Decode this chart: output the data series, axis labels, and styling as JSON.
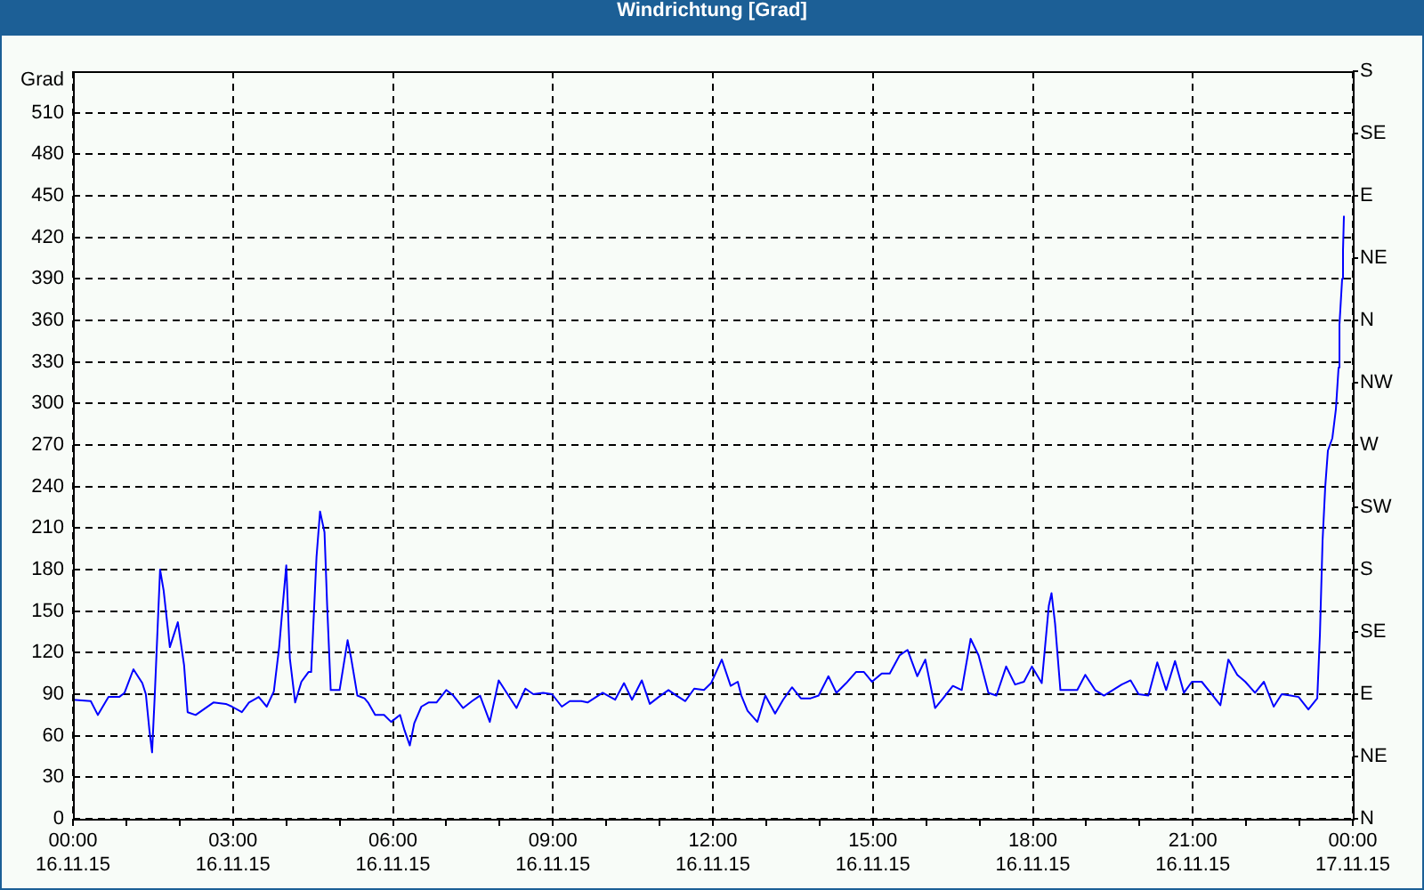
{
  "chart_data": {
    "type": "line",
    "title": "Windrichtung [Grad]",
    "ylabel": "Grad",
    "x": [
      "--11-16T00:00",
      "--11-16T00:20",
      "--11-16T00:28",
      "--11-16T00:40",
      "--11-16T00:52",
      "--11-16T00:58",
      "--11-16T01:08",
      "--11-16T01:18",
      "--11-16T01:22",
      "--11-16T01:26",
      "--11-16T01:29",
      "--11-16T01:32",
      "--11-16T01:38",
      "--11-16T01:42",
      "--11-16T01:49",
      "--11-16T01:58",
      "--11-16T02:05",
      "--11-16T02:09",
      "--11-16T02:18",
      "--11-16T02:38",
      "--11-16T02:52",
      "--11-16T02:59",
      "--11-16T03:10",
      "--11-16T03:18",
      "--11-16T03:29",
      "--11-16T03:38",
      "--11-16T03:46",
      "--11-16T03:52",
      "--11-16T03:56",
      "--11-16T04:00",
      "--11-16T04:04",
      "--11-16T04:10",
      "--11-16T04:17",
      "--11-16T04:25",
      "--11-16T04:28",
      "--11-16T04:34",
      "--11-16T04:38",
      "--11-16T04:43",
      "--11-16T04:46",
      "--11-16T04:50",
      "--11-16T05:00",
      "--11-16T05:09",
      "--11-16T05:13",
      "--11-16T05:20",
      "--11-16T05:28",
      "--11-16T05:32",
      "--11-16T05:40",
      "--11-16T05:50",
      "--11-16T05:58",
      "--11-16T06:08",
      "--11-16T06:13",
      "--11-16T06:19",
      "--11-16T06:24",
      "--11-16T06:32",
      "--11-16T06:40",
      "--11-16T06:49",
      "--11-16T07:00",
      "--11-16T07:08",
      "--11-16T07:19",
      "--11-16T07:29",
      "--11-16T07:38",
      "--11-16T07:49",
      "--11-16T07:59",
      "--11-16T08:09",
      "--11-16T08:19",
      "--11-16T08:29",
      "--11-16T08:38",
      "--11-16T08:49",
      "--11-16T08:59",
      "--11-16T09:10",
      "--11-16T09:19",
      "--11-16T09:32",
      "--11-16T09:39",
      "--11-16T09:56",
      "--11-16T10:10",
      "--11-16T10:20",
      "--11-16T10:29",
      "--11-16T10:40",
      "--11-16T10:49",
      "--11-16T10:59",
      "--11-16T11:10",
      "--11-16T11:19",
      "--11-16T11:29",
      "--11-16T11:39",
      "--11-16T11:50",
      "--11-16T11:58",
      "--11-16T12:10",
      "--11-16T12:20",
      "--11-16T12:28",
      "--11-16T12:32",
      "--11-16T12:39",
      "--11-16T12:50",
      "--11-16T12:59",
      "--11-16T13:10",
      "--11-16T13:19",
      "--11-16T13:29",
      "--11-16T13:39",
      "--11-16T13:50",
      "--11-16T13:59",
      "--11-16T14:10",
      "--11-16T14:19",
      "--11-16T14:30",
      "--11-16T14:41",
      "--11-16T14:50",
      "--11-16T14:59",
      "--11-16T15:10",
      "--11-16T15:19",
      "--11-16T15:30",
      "--11-16T15:39",
      "--11-16T15:50",
      "--11-16T15:59",
      "--11-16T16:10",
      "--11-16T16:19",
      "--11-16T16:30",
      "--11-16T16:40",
      "--11-16T16:50",
      "--11-16T16:59",
      "--11-16T17:10",
      "--11-16T17:19",
      "--11-16T17:30",
      "--11-16T17:40",
      "--11-16T17:50",
      "--11-16T17:59",
      "--11-16T18:10",
      "--11-16T18:18",
      "--11-16T18:21",
      "--11-16T18:25",
      "--11-16T18:31",
      "--11-16T18:50",
      "--11-16T18:59",
      "--11-16T19:10",
      "--11-16T19:20",
      "--11-16T19:30",
      "--11-16T19:40",
      "--11-16T19:50",
      "--11-16T19:59",
      "--11-16T20:10",
      "--11-16T20:20",
      "--11-16T20:30",
      "--11-16T20:40",
      "--11-16T20:50",
      "--11-16T20:59",
      "--11-16T21:10",
      "--11-16T21:20",
      "--11-16T21:31",
      "--11-16T21:40",
      "--11-16T21:50",
      "--11-16T21:59",
      "--11-16T22:10",
      "--11-16T22:20",
      "--11-16T22:31",
      "--11-16T22:40",
      "--11-16T22:50",
      "--11-16T22:59",
      "--11-16T23:10",
      "--11-16T23:20",
      "--11-16T23:23",
      "--11-16T23:26",
      "--11-16T23:29",
      "--11-16T23:32",
      "--11-16T23:37",
      "--11-16T23:41",
      "--11-16T23:44",
      "--11-16T23:45",
      "--11-16T23:48",
      "--11-16T23:49",
      "--11-16T23:50"
    ],
    "series": [
      {
        "color": "#0000ff",
        "values": [
          86,
          85,
          75,
          88,
          88,
          91,
          108,
          98,
          90,
          64,
          48,
          89,
          180,
          165,
          124,
          142,
          111,
          77,
          75,
          84,
          83,
          81,
          77,
          84,
          88,
          81,
          92,
          124,
          154,
          183,
          116,
          84,
          99,
          106,
          106,
          189,
          222,
          207,
          154,
          93,
          93,
          129,
          116,
          89,
          87,
          84,
          75,
          75,
          70,
          75,
          64,
          53,
          69,
          81,
          84,
          84,
          93,
          89,
          80,
          85,
          89,
          70,
          100,
          90,
          80,
          94,
          90,
          91,
          90,
          81,
          85,
          85,
          84,
          91,
          86,
          98,
          86,
          100,
          83,
          88,
          93,
          89,
          85,
          94,
          93,
          98,
          115,
          96,
          99,
          89,
          78,
          70,
          89,
          76,
          86,
          95,
          87,
          87,
          89,
          103,
          91,
          98,
          106,
          106,
          99,
          105,
          105,
          118,
          122,
          103,
          115,
          80,
          87,
          96,
          93,
          130,
          118,
          91,
          89,
          110,
          97,
          99,
          110,
          98,
          154,
          163,
          141,
          93,
          93,
          104,
          93,
          89,
          93,
          97,
          100,
          90,
          89,
          113,
          93,
          114,
          91,
          99,
          99,
          91,
          82,
          115,
          104,
          99,
          91,
          99,
          81,
          90,
          89,
          88,
          79,
          87,
          133,
          201,
          240,
          266,
          275,
          296,
          326,
          357,
          390,
          411,
          435
        ]
      }
    ],
    "xlim": [
      "--11-16T00:00",
      "--11-17T00:00"
    ],
    "xticks": [
      {
        "value": "--11-16T00:00",
        "label": "00:00\n16.11.15"
      },
      {
        "value": "--11-16T01:00",
        "label": null
      },
      {
        "value": "--11-16T02:00",
        "label": null
      },
      {
        "value": "--11-16T03:00",
        "label": "03:00\n16.11.15"
      },
      {
        "value": "--11-16T04:00",
        "label": null
      },
      {
        "value": "--11-16T05:00",
        "label": null
      },
      {
        "value": "--11-16T06:00",
        "label": "06:00\n16.11.15"
      },
      {
        "value": "--11-16T07:00",
        "label": null
      },
      {
        "value": "--11-16T08:00",
        "label": null
      },
      {
        "value": "--11-16T09:00",
        "label": "09:00\n16.11.15"
      },
      {
        "value": "--11-16T10:00",
        "label": null
      },
      {
        "value": "--11-16T11:00",
        "label": null
      },
      {
        "value": "--11-16T12:00",
        "label": "12:00\n16.11.15"
      },
      {
        "value": "--11-16T13:00",
        "label": null
      },
      {
        "value": "--11-16T14:00",
        "label": null
      },
      {
        "value": "--11-16T15:00",
        "label": "15:00\n16.11.15"
      },
      {
        "value": "--11-16T16:00",
        "label": null
      },
      {
        "value": "--11-16T17:00",
        "label": null
      },
      {
        "value": "--11-16T18:00",
        "label": "18:00\n16.11.15"
      },
      {
        "value": "--11-16T19:00",
        "label": null
      },
      {
        "value": "--11-16T20:00",
        "label": null
      },
      {
        "value": "--11-16T21:00",
        "label": "21:00\n16.11.15"
      },
      {
        "value": "--11-16T22:00",
        "label": null
      },
      {
        "value": "--11-16T23:00",
        "label": null
      },
      {
        "value": "--11-17T00:00",
        "label": "00:00\n17.11.15"
      }
    ],
    "ylim": [
      0,
      540
    ],
    "yticks": [
      0,
      30,
      60,
      90,
      120,
      150,
      180,
      210,
      240,
      270,
      300,
      330,
      360,
      390,
      420,
      450,
      480,
      510
    ],
    "y2_categories": [
      "S",
      "SE",
      "E",
      "NE",
      "N",
      "NW",
      "W",
      "SW",
      "S",
      "SE",
      "E",
      "NE",
      "N"
    ],
    "grid": true
  }
}
